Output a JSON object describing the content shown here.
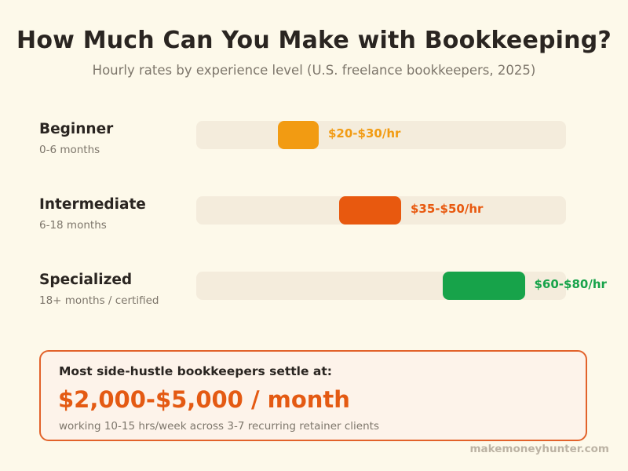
{
  "header": {
    "title": "How Much Can You Make with Bookkeeping?",
    "subtitle": "Hourly rates by experience level  (U.S. freelance bookkeepers, 2025)"
  },
  "chart_data": {
    "type": "bar",
    "orientation": "horizontal-range",
    "unit": "$/hr",
    "grid": false,
    "categories": [
      {
        "name": "Beginner",
        "sublabel": "0-6 months",
        "low": 20,
        "high": 30,
        "label": "$20-$30/hr",
        "color": "#f29b12"
      },
      {
        "name": "Intermediate",
        "sublabel": "6-18 months",
        "low": 35,
        "high": 50,
        "label": "$35-$50/hr",
        "color": "#e8590f"
      },
      {
        "name": "Specialized",
        "sublabel": "18+ months / certified",
        "low": 60,
        "high": 80,
        "label": "$60-$80/hr",
        "color": "#17a34a"
      }
    ]
  },
  "summary": {
    "lead": "Most side-hustle bookkeepers settle at:",
    "amount": "$2,000-$5,000 / month",
    "note": "working 10-15 hrs/week  across 3-7 recurring retainer clients"
  },
  "footer": {
    "site": "makemoneyhunter.com"
  },
  "colors": {
    "background": "#fdf9ea",
    "track": "#f4ecdc",
    "accent": "#e45a13"
  }
}
